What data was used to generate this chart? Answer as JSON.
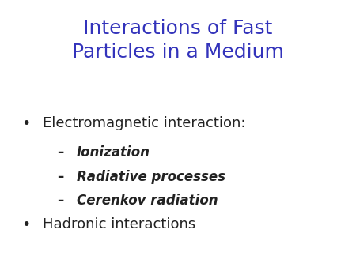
{
  "title_line1": "Interactions of Fast",
  "title_line2": "Particles in a Medium",
  "title_color": "#3333bb",
  "background_color": "#ffffff",
  "bullet_color": "#222222",
  "bullet1_text": "Electromagnetic interaction:",
  "sub1_text": "Ionization",
  "sub2_text": "Radiative processes",
  "sub3_text": "Cerenkov radiation",
  "bullet2_text": "Hadronic interactions",
  "title_fontsize": 18,
  "bullet_fontsize": 13,
  "sub_fontsize": 12
}
